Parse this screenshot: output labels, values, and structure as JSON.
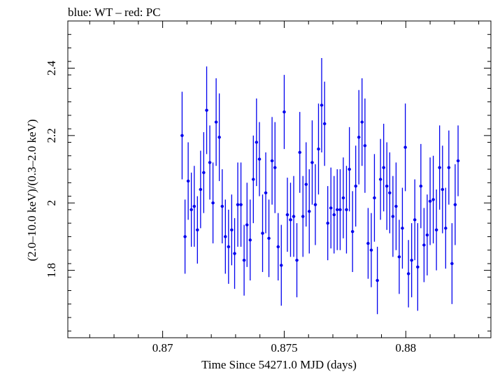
{
  "chart_data": {
    "type": "scatter",
    "title": "blue: WT – red: PC",
    "xlabel": "Time Since 54271.0 MJD (days)",
    "ylabel": "(2.0–10.0 keV)/(0.3–2.0 keV)",
    "xlim": [
      0.8661,
      0.8835
    ],
    "ylim": [
      1.6,
      2.54
    ],
    "xticks": [
      0.87,
      0.875,
      0.88
    ],
    "xtick_labels": [
      "0.87",
      "0.875",
      "0.88"
    ],
    "yticks": [
      1.8,
      2.0,
      2.2,
      2.4
    ],
    "ytick_labels": [
      "1.8",
      "2",
      "2.2",
      "2.4"
    ],
    "grid": false,
    "series": [
      {
        "color": "#0000ee",
        "x": [
          0.8708,
          0.87092,
          0.87105,
          0.87118,
          0.8713,
          0.87143,
          0.87156,
          0.87169,
          0.87181,
          0.87194,
          0.87207,
          0.8722,
          0.87233,
          0.87245,
          0.87258,
          0.87271,
          0.87284,
          0.87296,
          0.87309,
          0.87322,
          0.87335,
          0.87347,
          0.8736,
          0.87373,
          0.87386,
          0.87398,
          0.87411,
          0.87424,
          0.87437,
          0.8745,
          0.87462,
          0.87475,
          0.87488,
          0.875,
          0.87513,
          0.87526,
          0.87539,
          0.87552,
          0.87564,
          0.87577,
          0.8759,
          0.87603,
          0.87615,
          0.87628,
          0.87641,
          0.87654,
          0.87666,
          0.87679,
          0.87692,
          0.87705,
          0.87718,
          0.8773,
          0.87743,
          0.87756,
          0.87768,
          0.87781,
          0.87794,
          0.87807,
          0.8782,
          0.87832,
          0.87845,
          0.87858,
          0.87871,
          0.87883,
          0.87896,
          0.87909,
          0.87922,
          0.87934,
          0.87947,
          0.8796,
          0.87973,
          0.87986,
          0.87998,
          0.88011,
          0.88024,
          0.88037,
          0.88049,
          0.88062,
          0.88075,
          0.88088,
          0.881,
          0.88113,
          0.88126,
          0.88139,
          0.88151,
          0.88164,
          0.88177,
          0.8819,
          0.88203,
          0.88215
        ],
        "y": [
          2.2,
          1.9,
          2.065,
          1.98,
          1.99,
          1.92,
          2.04,
          2.09,
          2.275,
          2.12,
          2.0,
          2.24,
          2.195,
          1.99,
          1.9,
          1.87,
          1.92,
          1.85,
          1.995,
          1.995,
          1.83,
          1.935,
          1.89,
          2.07,
          2.18,
          2.13,
          1.91,
          2.03,
          1.895,
          2.125,
          2.105,
          1.87,
          1.815,
          2.27,
          1.965,
          1.95,
          1.96,
          1.83,
          2.15,
          1.96,
          2.055,
          1.975,
          2.12,
          1.995,
          2.16,
          2.29,
          2.235,
          1.94,
          1.985,
          1.965,
          1.98,
          1.98,
          2.015,
          1.98,
          2.1,
          1.915,
          2.05,
          2.195,
          2.24,
          2.17,
          1.88,
          1.86,
          2.015,
          1.77,
          2.07,
          2.105,
          2.05,
          2.03,
          1.96,
          1.99,
          1.84,
          1.925,
          2.165,
          1.79,
          1.83,
          1.95,
          1.81,
          2.05,
          1.875,
          1.905,
          2.005,
          2.01,
          1.92,
          2.105,
          2.04,
          1.925,
          2.105,
          1.82,
          1.995,
          2.125
        ],
        "err": [
          0.13,
          0.11,
          0.115,
          0.11,
          0.12,
          0.1,
          0.115,
          0.12,
          0.13,
          0.11,
          0.12,
          0.13,
          0.13,
          0.11,
          0.11,
          0.11,
          0.105,
          0.105,
          0.125,
          0.125,
          0.105,
          0.125,
          0.12,
          0.13,
          0.13,
          0.11,
          0.115,
          0.12,
          0.115,
          0.13,
          0.135,
          0.1,
          0.12,
          0.11,
          0.11,
          0.11,
          0.12,
          0.11,
          0.12,
          0.12,
          0.125,
          0.125,
          0.125,
          0.12,
          0.135,
          0.14,
          0.125,
          0.11,
          0.12,
          0.115,
          0.12,
          0.12,
          0.12,
          0.13,
          0.125,
          0.12,
          0.12,
          0.14,
          0.13,
          0.14,
          0.105,
          0.11,
          0.13,
          0.1,
          0.12,
          0.13,
          0.13,
          0.12,
          0.12,
          0.13,
          0.11,
          0.12,
          0.13,
          0.1,
          0.11,
          0.12,
          0.13,
          0.125,
          0.11,
          0.12,
          0.13,
          0.13,
          0.12,
          0.125,
          0.13,
          0.12,
          0.11,
          0.12,
          0.12,
          0.105
        ]
      }
    ]
  }
}
